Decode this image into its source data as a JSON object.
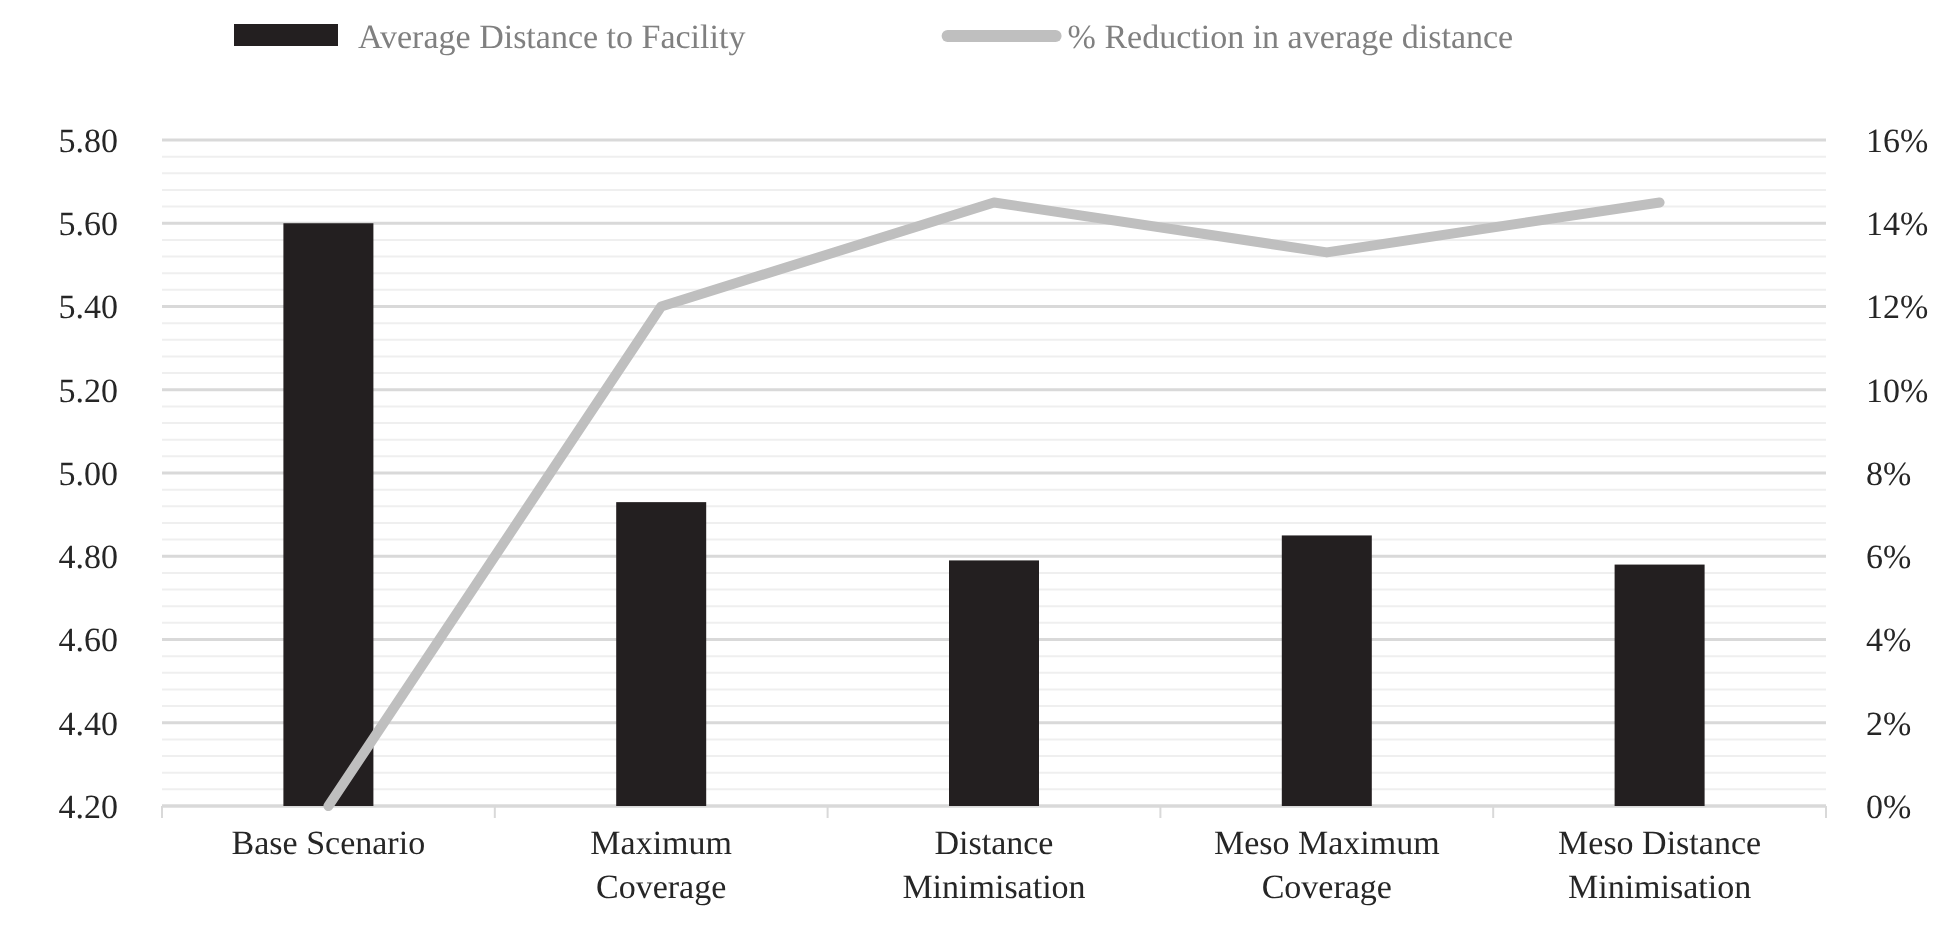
{
  "chart_data": {
    "type": "bar",
    "categories": [
      "Base Scenario",
      "Maximum Coverage",
      "Distance Minimisation",
      "Meso Maximum Coverage",
      "Meso Distance Minimisation"
    ],
    "series": [
      {
        "name": "Average Distance to Facility",
        "color": "#231f20",
        "values": [
          5.6,
          4.93,
          4.79,
          4.85,
          4.78
        ]
      },
      {
        "name": "% Reduction in average distance",
        "type": "line",
        "axis": "y2",
        "color": "#bfbfbf",
        "values": [
          0,
          12.0,
          14.5,
          13.3,
          14.5
        ]
      }
    ],
    "ylim": [
      4.2,
      5.8
    ],
    "yticks": [
      {
        "value": 4.2,
        "label": "4.20"
      },
      {
        "value": 4.24,
        "label": null
      },
      {
        "value": 4.28,
        "label": null
      },
      {
        "value": 4.32,
        "label": null
      },
      {
        "value": 4.36,
        "label": null
      },
      {
        "value": 4.4,
        "label": "4.40"
      },
      {
        "value": 4.44,
        "label": null
      },
      {
        "value": 4.48,
        "label": null
      },
      {
        "value": 4.52,
        "label": null
      },
      {
        "value": 4.56,
        "label": null
      },
      {
        "value": 4.6,
        "label": "4.60"
      },
      {
        "value": 4.64,
        "label": null
      },
      {
        "value": 4.68,
        "label": null
      },
      {
        "value": 4.72,
        "label": null
      },
      {
        "value": 4.76,
        "label": null
      },
      {
        "value": 4.8,
        "label": "4.80"
      },
      {
        "value": 4.84,
        "label": null
      },
      {
        "value": 4.88,
        "label": null
      },
      {
        "value": 4.92,
        "label": null
      },
      {
        "value": 4.96,
        "label": null
      },
      {
        "value": 5.0,
        "label": "5.00"
      },
      {
        "value": 5.04,
        "label": null
      },
      {
        "value": 5.08,
        "label": null
      },
      {
        "value": 5.12,
        "label": null
      },
      {
        "value": 5.16,
        "label": null
      },
      {
        "value": 5.2,
        "label": "5.20"
      },
      {
        "value": 5.24,
        "label": null
      },
      {
        "value": 5.28,
        "label": null
      },
      {
        "value": 5.32,
        "label": null
      },
      {
        "value": 5.36,
        "label": null
      },
      {
        "value": 5.4,
        "label": "5.40"
      },
      {
        "value": 5.44,
        "label": null
      },
      {
        "value": 5.48,
        "label": null
      },
      {
        "value": 5.52,
        "label": null
      },
      {
        "value": 5.56,
        "label": null
      },
      {
        "value": 5.6,
        "label": "5.60"
      },
      {
        "value": 5.64,
        "label": null
      },
      {
        "value": 5.68,
        "label": null
      },
      {
        "value": 5.72,
        "label": null
      },
      {
        "value": 5.76,
        "label": null
      },
      {
        "value": 5.8,
        "label": "5.80"
      }
    ],
    "y2lim": [
      0,
      16
    ],
    "y2ticks": [
      {
        "value": 0,
        "label": "0%"
      },
      {
        "value": 2,
        "label": "2%"
      },
      {
        "value": 4,
        "label": "4%"
      },
      {
        "value": 6,
        "label": "6%"
      },
      {
        "value": 8,
        "label": "8%"
      },
      {
        "value": 10,
        "label": "10%"
      },
      {
        "value": 12,
        "label": "12%"
      },
      {
        "value": 14,
        "label": "14%"
      },
      {
        "value": 16,
        "label": "16%"
      }
    ],
    "grid": "y",
    "legend": "top",
    "marker": "none",
    "line_style": "solid"
  }
}
